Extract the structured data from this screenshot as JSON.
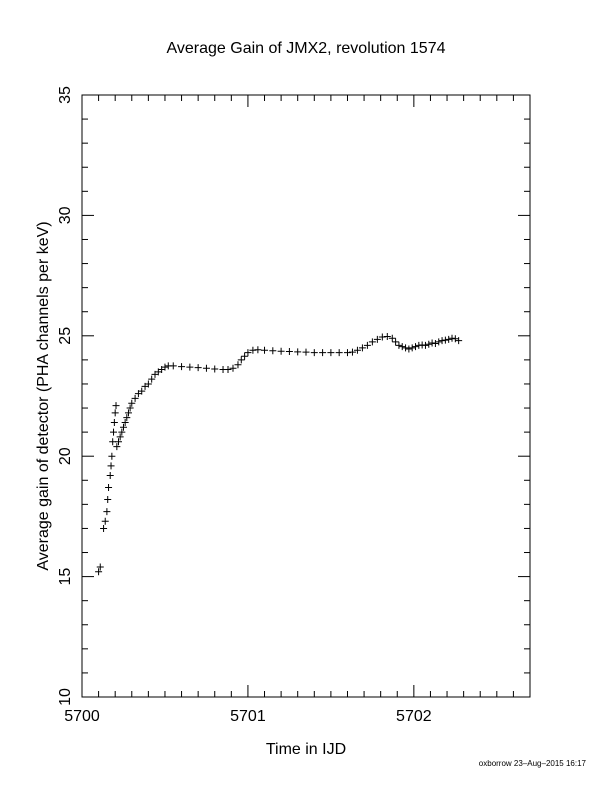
{
  "chart_data": {
    "type": "scatter",
    "title": "Average Gain of JMX2, revolution 1574",
    "xlabel": "Time in IJD",
    "ylabel": "Average gain of detector (PHA channels per keV)",
    "xlim": [
      5700,
      5702.7
    ],
    "ylim": [
      10,
      35
    ],
    "x_ticks": [
      5700,
      5701,
      5702
    ],
    "x_tick_labels": [
      "5700",
      "5701",
      "5702"
    ],
    "y_ticks": [
      10,
      15,
      20,
      25,
      30,
      35
    ],
    "y_tick_labels": [
      "10",
      "15",
      "20",
      "25",
      "30",
      "35"
    ],
    "marker": "plus",
    "grid": false,
    "series": [
      {
        "color": "#000000",
        "points": [
          [
            5700.1,
            15.2
          ],
          [
            5700.11,
            15.4
          ],
          [
            5700.13,
            17.0
          ],
          [
            5700.14,
            17.3
          ],
          [
            5700.15,
            17.7
          ],
          [
            5700.155,
            18.2
          ],
          [
            5700.16,
            18.7
          ],
          [
            5700.17,
            19.2
          ],
          [
            5700.175,
            19.6
          ],
          [
            5700.18,
            20.0
          ],
          [
            5700.185,
            20.6
          ],
          [
            5700.19,
            21.0
          ],
          [
            5700.195,
            21.4
          ],
          [
            5700.2,
            21.8
          ],
          [
            5700.205,
            22.1
          ],
          [
            5700.21,
            20.4
          ],
          [
            5700.22,
            20.6
          ],
          [
            5700.23,
            20.8
          ],
          [
            5700.24,
            21.0
          ],
          [
            5700.25,
            21.2
          ],
          [
            5700.26,
            21.4
          ],
          [
            5700.27,
            21.6
          ],
          [
            5700.28,
            21.8
          ],
          [
            5700.29,
            22.0
          ],
          [
            5700.3,
            22.2
          ],
          [
            5700.32,
            22.4
          ],
          [
            5700.34,
            22.6
          ],
          [
            5700.36,
            22.7
          ],
          [
            5700.38,
            22.9
          ],
          [
            5700.4,
            23.0
          ],
          [
            5700.42,
            23.2
          ],
          [
            5700.44,
            23.4
          ],
          [
            5700.46,
            23.5
          ],
          [
            5700.48,
            23.6
          ],
          [
            5700.5,
            23.7
          ],
          [
            5700.52,
            23.75
          ],
          [
            5700.55,
            23.75
          ],
          [
            5700.6,
            23.72
          ],
          [
            5700.65,
            23.7
          ],
          [
            5700.7,
            23.68
          ],
          [
            5700.75,
            23.65
          ],
          [
            5700.8,
            23.62
          ],
          [
            5700.85,
            23.6
          ],
          [
            5700.88,
            23.6
          ],
          [
            5700.91,
            23.65
          ],
          [
            5700.94,
            23.8
          ],
          [
            5700.96,
            24.0
          ],
          [
            5700.98,
            24.15
          ],
          [
            5701.0,
            24.3
          ],
          [
            5701.03,
            24.4
          ],
          [
            5701.06,
            24.42
          ],
          [
            5701.1,
            24.4
          ],
          [
            5701.15,
            24.38
          ],
          [
            5701.2,
            24.36
          ],
          [
            5701.25,
            24.35
          ],
          [
            5701.3,
            24.33
          ],
          [
            5701.35,
            24.32
          ],
          [
            5701.4,
            24.3
          ],
          [
            5701.45,
            24.3
          ],
          [
            5701.5,
            24.3
          ],
          [
            5701.55,
            24.3
          ],
          [
            5701.6,
            24.3
          ],
          [
            5701.63,
            24.32
          ],
          [
            5701.66,
            24.4
          ],
          [
            5701.69,
            24.5
          ],
          [
            5701.72,
            24.6
          ],
          [
            5701.75,
            24.75
          ],
          [
            5701.78,
            24.85
          ],
          [
            5701.81,
            24.95
          ],
          [
            5701.84,
            24.97
          ],
          [
            5701.87,
            24.9
          ],
          [
            5701.89,
            24.75
          ],
          [
            5701.91,
            24.6
          ],
          [
            5701.93,
            24.55
          ],
          [
            5701.95,
            24.5
          ],
          [
            5701.97,
            24.45
          ],
          [
            5701.99,
            24.5
          ],
          [
            5702.01,
            24.55
          ],
          [
            5702.03,
            24.6
          ],
          [
            5702.05,
            24.62
          ],
          [
            5702.07,
            24.6
          ],
          [
            5702.09,
            24.65
          ],
          [
            5702.11,
            24.7
          ],
          [
            5702.13,
            24.68
          ],
          [
            5702.15,
            24.75
          ],
          [
            5702.17,
            24.8
          ],
          [
            5702.19,
            24.82
          ],
          [
            5702.21,
            24.85
          ],
          [
            5702.23,
            24.9
          ],
          [
            5702.25,
            24.88
          ],
          [
            5702.27,
            24.8
          ]
        ]
      }
    ]
  },
  "footer": {
    "credit": "oxborrow 23–Aug–2015 16:17"
  }
}
